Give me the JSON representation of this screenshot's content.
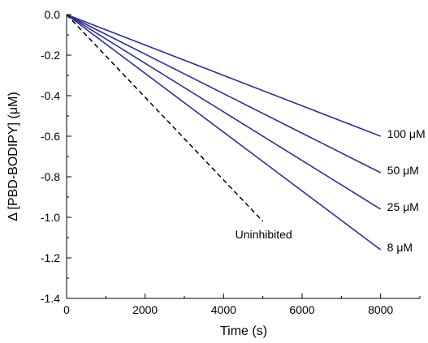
{
  "chart_data": {
    "type": "line",
    "title": "",
    "xlabel": "Time (s)",
    "ylabel": "Δ [PBD-BODIPY] (μM)",
    "xlim": [
      0,
      9000
    ],
    "ylim": [
      -1.4,
      0
    ],
    "xticks": [
      0,
      2000,
      4000,
      6000,
      8000
    ],
    "xtick_labels": [
      "0",
      "2000",
      "4000",
      "6000",
      "8000"
    ],
    "yticks": [
      0.0,
      -0.2,
      -0.4,
      -0.6,
      -0.8,
      -1.0,
      -1.2,
      -1.4
    ],
    "ytick_labels": [
      "0.0",
      "-0.2",
      "-0.4",
      "-0.6",
      "-0.8",
      "-1.0",
      "-1.2",
      "-1.4"
    ],
    "grid": false,
    "legend": "none",
    "series": [
      {
        "name": "100 μM",
        "x": [
          0,
          8000
        ],
        "y": [
          0,
          -0.6
        ],
        "color": "#2e3092",
        "dash": "solid"
      },
      {
        "name": "50 μM",
        "x": [
          0,
          8000
        ],
        "y": [
          0,
          -0.78
        ],
        "color": "#2e3092",
        "dash": "solid"
      },
      {
        "name": "25 μM",
        "x": [
          0,
          8000
        ],
        "y": [
          0,
          -0.96
        ],
        "color": "#2e3092",
        "dash": "solid"
      },
      {
        "name": "8 μM",
        "x": [
          0,
          8000
        ],
        "y": [
          0,
          -1.16
        ],
        "color": "#2e3092",
        "dash": "solid"
      },
      {
        "name": "Uninhibited",
        "x": [
          0,
          5000
        ],
        "y": [
          0,
          -1.02
        ],
        "color": "#000000",
        "dash": "dashed"
      }
    ]
  }
}
